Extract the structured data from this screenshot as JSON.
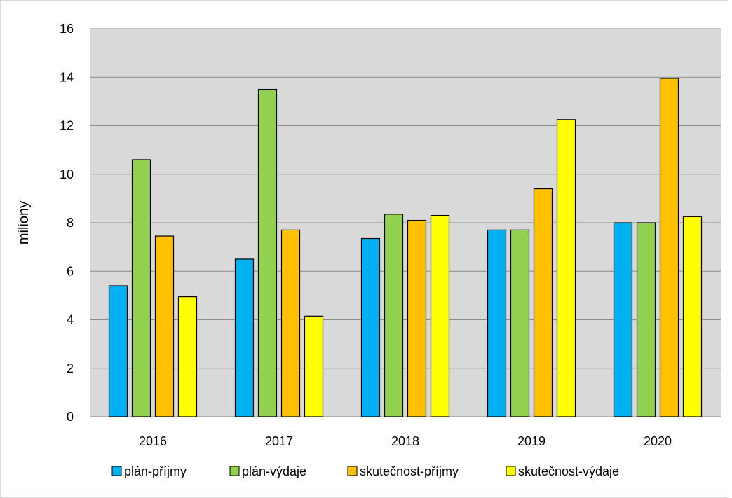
{
  "chart_data": {
    "type": "bar",
    "ylabel": "miliony",
    "ylim": [
      0,
      16
    ],
    "yticks": [
      0,
      2,
      4,
      6,
      8,
      10,
      12,
      14,
      16
    ],
    "grid": true,
    "legend_position": "bottom",
    "categories": [
      "2016",
      "2017",
      "2018",
      "2019",
      "2020"
    ],
    "series": [
      {
        "name": "plán-příjmy",
        "color": "#00B0F0",
        "values": [
          5.4,
          6.5,
          7.35,
          7.7,
          8.0
        ]
      },
      {
        "name": "plán-výdaje",
        "color": "#92D050",
        "values": [
          10.6,
          13.5,
          8.35,
          7.7,
          8.0
        ]
      },
      {
        "name": "skutečnost-příjmy",
        "color": "#FFC000",
        "values": [
          7.45,
          7.7,
          8.1,
          9.4,
          13.95
        ]
      },
      {
        "name": "skutečnost-výdaje",
        "color": "#FFFF00",
        "values": [
          4.95,
          4.15,
          8.3,
          12.25,
          8.25
        ]
      }
    ],
    "plot_background": "#D9D9D9",
    "gridline_color": "#8C8C8C",
    "bar_outline_color": "#000000"
  }
}
